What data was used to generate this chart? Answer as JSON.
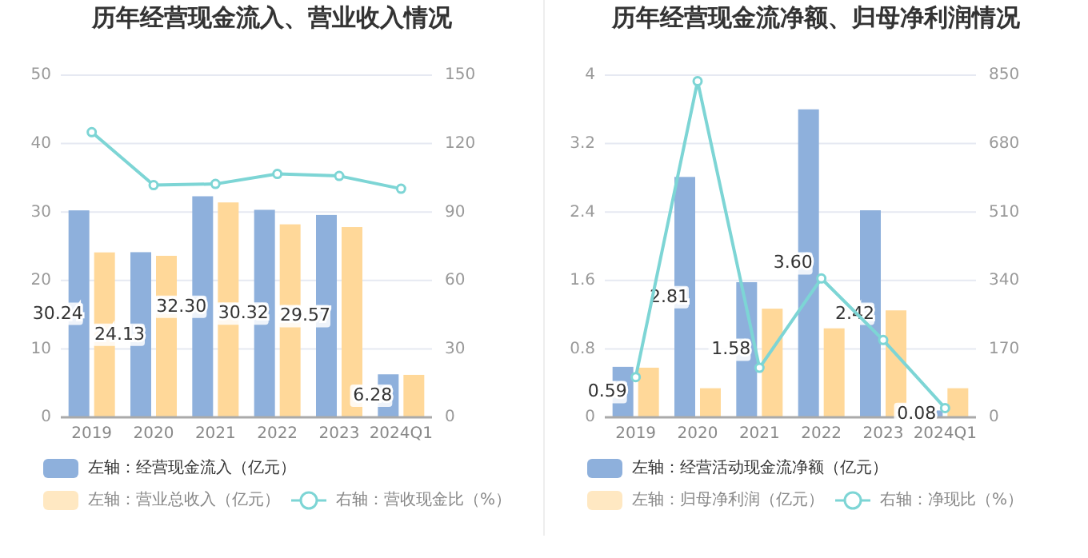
{
  "chart_data": [
    {
      "type": "bar",
      "title": "历年经营现金流入、营业收入情况",
      "categories": [
        "2019",
        "2020",
        "2021",
        "2022",
        "2023",
        "2024Q1"
      ],
      "ylim": [
        0,
        50
      ],
      "yticks": [
        0,
        10,
        20,
        30,
        40,
        50
      ],
      "y2lim": [
        0,
        150
      ],
      "y2ticks": [
        0,
        30,
        60,
        90,
        120,
        150
      ],
      "grid": "y",
      "legend": "bottom",
      "series": [
        {
          "name": "左轴：经营现金流入（亿元）",
          "color": "#8eb0dc",
          "values": [
            30.24,
            24.13,
            32.3,
            30.32,
            29.57,
            6.28
          ],
          "value_labels": [
            "30.24",
            "24.13",
            "32.30",
            "30.32",
            "29.57",
            "6.28"
          ]
        },
        {
          "name": "左轴：营业总收入（亿元）",
          "color": "#ffd899",
          "values": [
            24.1,
            23.6,
            31.4,
            28.2,
            27.8,
            6.2
          ]
        },
        {
          "name": "右轴：营收现金比（%）",
          "type": "line",
          "axis": "y2",
          "color": "#7dd5d5",
          "marker": "circle",
          "values": [
            125,
            101.8,
            102.3,
            106.7,
            105.8,
            100.2
          ]
        }
      ]
    },
    {
      "type": "bar",
      "title": "历年经营现金流净额、归母净利润情况",
      "categories": [
        "2019",
        "2020",
        "2021",
        "2022",
        "2023",
        "2024Q1"
      ],
      "ylim": [
        0,
        4
      ],
      "yticks": [
        0,
        0.8,
        1.6,
        2.4,
        3.2,
        4
      ],
      "y2lim": [
        0,
        850
      ],
      "y2ticks": [
        0,
        170,
        340,
        510,
        680,
        850
      ],
      "grid": "y",
      "legend": "bottom",
      "series": [
        {
          "name": "左轴：经营活动现金流净额（亿元）",
          "color": "#8eb0dc",
          "values": [
            0.59,
            2.81,
            1.58,
            3.6,
            2.42,
            0.08
          ],
          "value_labels": [
            "0.59",
            "2.81",
            "1.58",
            "3.60",
            "2.42",
            "0.08"
          ]
        },
        {
          "name": "左轴：归母净利润（亿元）",
          "color": "#ffd899",
          "values": [
            0.58,
            0.34,
            1.27,
            1.04,
            1.25,
            0.34
          ]
        },
        {
          "name": "右轴：净现比（%）",
          "type": "line",
          "axis": "y2",
          "color": "#7dd5d5",
          "marker": "circle",
          "values": [
            100,
            835,
            123,
            345,
            192,
            23
          ]
        }
      ]
    }
  ]
}
